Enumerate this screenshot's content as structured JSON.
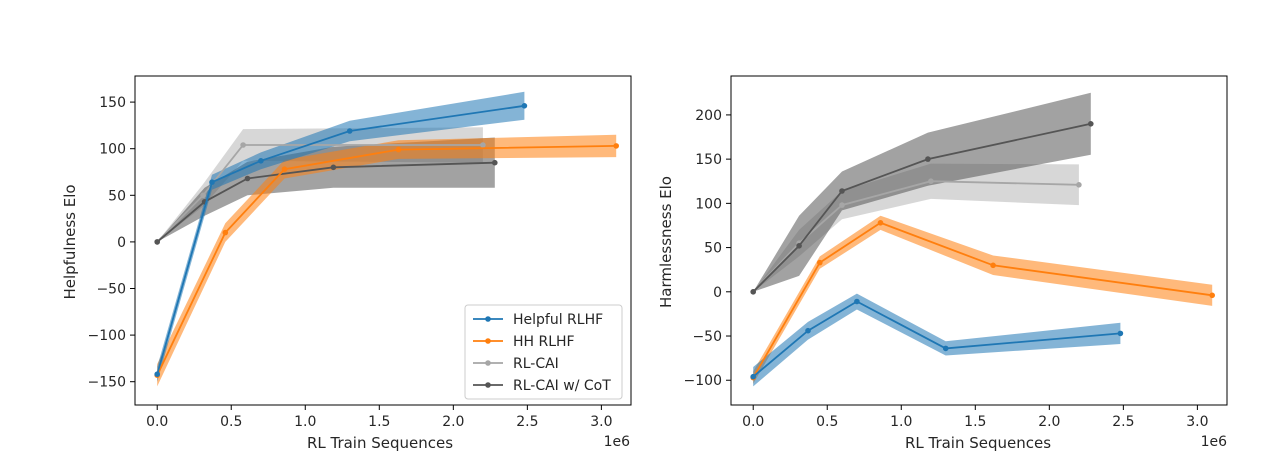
{
  "colors": {
    "Helpful RLHF": "#1f77b4",
    "HH RLHF": "#ff7f0e",
    "RL-CAI": "#a6a6a6",
    "RL-CAI w/ CoT": "#555555"
  },
  "chart_data": [
    {
      "type": "line",
      "xlabel": "RL Train Sequences",
      "ylabel": "Helpfulness Elo",
      "x_offset_label": "1e6",
      "xlim": [
        -0.15,
        3.2
      ],
      "ylim": [
        -175,
        178
      ],
      "xticks": [
        0.0,
        0.5,
        1.0,
        1.5,
        2.0,
        2.5,
        3.0
      ],
      "xtick_labels": [
        "0.0",
        "0.5",
        "1.0",
        "1.5",
        "2.0",
        "2.5",
        "3.0"
      ],
      "yticks": [
        -150,
        -100,
        -50,
        0,
        50,
        100,
        150
      ],
      "ytick_labels": [
        "−150",
        "−100",
        "−50",
        "0",
        "50",
        "100",
        "150"
      ],
      "legend": {
        "placement": "bottom-right",
        "entries": [
          "Helpful RLHF",
          "HH RLHF",
          "RL-CAI",
          "RL-CAI w/ CoT"
        ]
      },
      "series": [
        {
          "name": "RL-CAI",
          "x": [
            0.0,
            0.31,
            0.58,
            2.2
          ],
          "y": [
            0,
            50,
            104,
            104
          ],
          "lower": [
            0,
            38,
            87,
            85
          ],
          "upper": [
            0,
            62,
            121,
            123
          ]
        },
        {
          "name": "RL-CAI w/ CoT",
          "x": [
            0.0,
            0.32,
            0.61,
            1.19,
            2.28
          ],
          "y": [
            0,
            43,
            68,
            80,
            85
          ],
          "lower": [
            0,
            28,
            50,
            58,
            58
          ],
          "upper": [
            0,
            58,
            86,
            102,
            112
          ]
        },
        {
          "name": "HH RLHF",
          "x": [
            0.0,
            0.46,
            0.86,
            1.63,
            3.1
          ],
          "y": [
            -143,
            10,
            78,
            99,
            103
          ],
          "lower": [
            -155,
            0,
            68,
            89,
            91
          ],
          "upper": [
            -131,
            20,
            88,
            109,
            115
          ]
        },
        {
          "name": "Helpful RLHF",
          "x": [
            0.0,
            0.37,
            0.7,
            1.3,
            2.48
          ],
          "y": [
            -142,
            64,
            87,
            119,
            146
          ],
          "lower": [
            -150,
            56,
            78,
            108,
            131
          ],
          "upper": [
            -134,
            72,
            96,
            130,
            161
          ]
        }
      ]
    },
    {
      "type": "line",
      "xlabel": "RL Train Sequences",
      "ylabel": "Harmlessness Elo",
      "x_offset_label": "1e6",
      "xlim": [
        -0.15,
        3.2
      ],
      "ylim": [
        -128,
        244
      ],
      "xticks": [
        0.0,
        0.5,
        1.0,
        1.5,
        2.0,
        2.5,
        3.0
      ],
      "xtick_labels": [
        "0.0",
        "0.5",
        "1.0",
        "1.5",
        "2.0",
        "2.5",
        "3.0"
      ],
      "yticks": [
        -100,
        -50,
        0,
        50,
        100,
        150,
        200
      ],
      "ytick_labels": [
        "−100",
        "−50",
        "0",
        "50",
        "100",
        "150",
        "200"
      ],
      "series": [
        {
          "name": "RL-CAI",
          "x": [
            0.0,
            0.31,
            0.6,
            1.2,
            2.2
          ],
          "y": [
            0,
            55,
            98,
            125,
            121
          ],
          "lower": [
            0,
            40,
            82,
            105,
            98
          ],
          "upper": [
            0,
            70,
            114,
            145,
            144
          ]
        },
        {
          "name": "RL-CAI w/ CoT",
          "x": [
            0.0,
            0.31,
            0.6,
            1.18,
            2.28
          ],
          "y": [
            0,
            52,
            114,
            150,
            190
          ],
          "lower": [
            0,
            18,
            92,
            120,
            155
          ],
          "upper": [
            0,
            86,
            136,
            180,
            225
          ]
        },
        {
          "name": "HH RLHF",
          "x": [
            0.0,
            0.45,
            0.86,
            1.62,
            3.1
          ],
          "y": [
            -97,
            33,
            78,
            30,
            -4
          ],
          "lower": [
            -104,
            26,
            70,
            19,
            -16
          ],
          "upper": [
            -90,
            40,
            86,
            41,
            8
          ]
        },
        {
          "name": "Helpful RLHF",
          "x": [
            0.0,
            0.37,
            0.7,
            1.3,
            2.48
          ],
          "y": [
            -96,
            -44,
            -11,
            -64,
            -47
          ],
          "lower": [
            -107,
            -54,
            -20,
            -72,
            -59
          ],
          "upper": [
            -85,
            -34,
            -2,
            -56,
            -35
          ]
        }
      ]
    }
  ]
}
